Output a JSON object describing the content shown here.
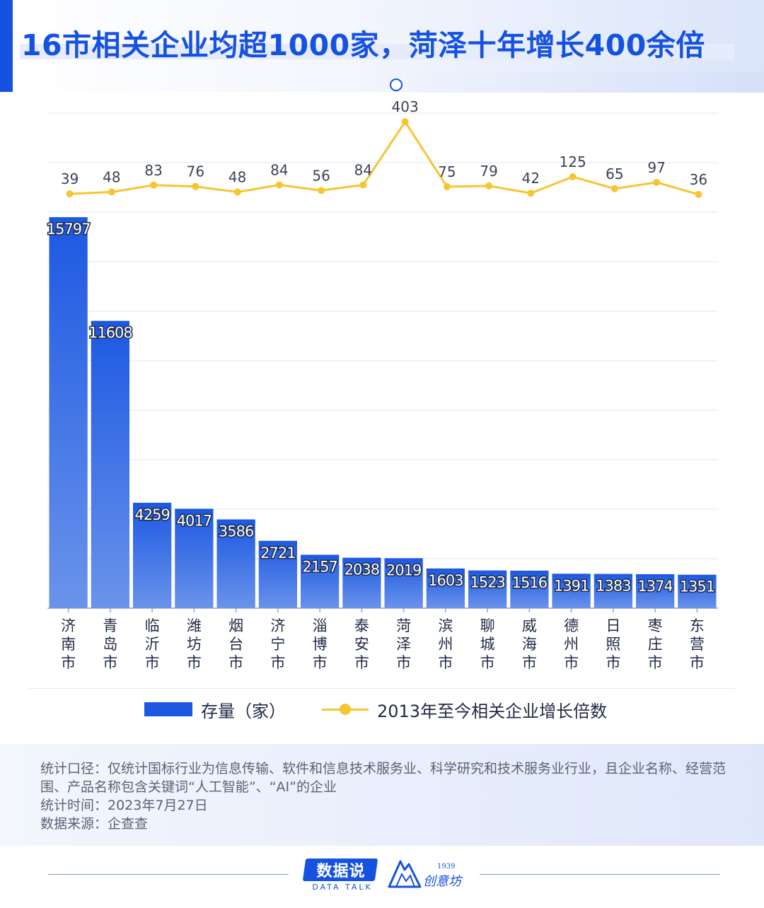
{
  "title": "16市相关企业均超1000家，菏泽十年增长400余倍",
  "chart_data": {
    "type": "bar",
    "categories": [
      "济南市",
      "青岛市",
      "临沂市",
      "潍坊市",
      "烟台市",
      "济宁市",
      "淄博市",
      "泰安市",
      "菏泽市",
      "滨州市",
      "聊城市",
      "威海市",
      "德州市",
      "日照市",
      "枣庄市",
      "东营市"
    ],
    "series": [
      {
        "name": "存量（家）",
        "type": "bar",
        "color": "#1c58e2",
        "values": [
          15797,
          11608,
          4259,
          4017,
          3586,
          2721,
          2157,
          2038,
          2019,
          1603,
          1523,
          1516,
          1391,
          1383,
          1374,
          1351
        ]
      },
      {
        "name": "2013年至今相关企业增长倍数",
        "type": "line",
        "color": "#f6c531",
        "values": [
          39,
          48,
          83,
          76,
          48,
          84,
          56,
          84,
          403,
          75,
          79,
          42,
          125,
          65,
          97,
          36
        ]
      }
    ],
    "bar_axis": {
      "ylim": [
        0,
        16000
      ],
      "grid": true
    },
    "line_axis": {
      "ylim": [
        0,
        500
      ]
    }
  },
  "legend": {
    "bar_label": "存量（家）",
    "line_label": "2013年至今相关企业增长倍数"
  },
  "notes": [
    "统计口径：仅统计国标行业为信息传输、软件和信息技术服务业、科学研究和技术服务业行业，且企业名称、经营范围、产品名称包含关键词“人工智能”、“AI”的企业",
    "统计时间：2023年7月27日",
    "数据来源：企查查"
  ],
  "brand": {
    "name": "数据说",
    "sub": "DATA TALK",
    "logo_text": "创意坊",
    "logo_year": "1939"
  },
  "colors": {
    "accent": "#1652e0",
    "bar": "#1c58e2",
    "line": "#f6c531"
  }
}
